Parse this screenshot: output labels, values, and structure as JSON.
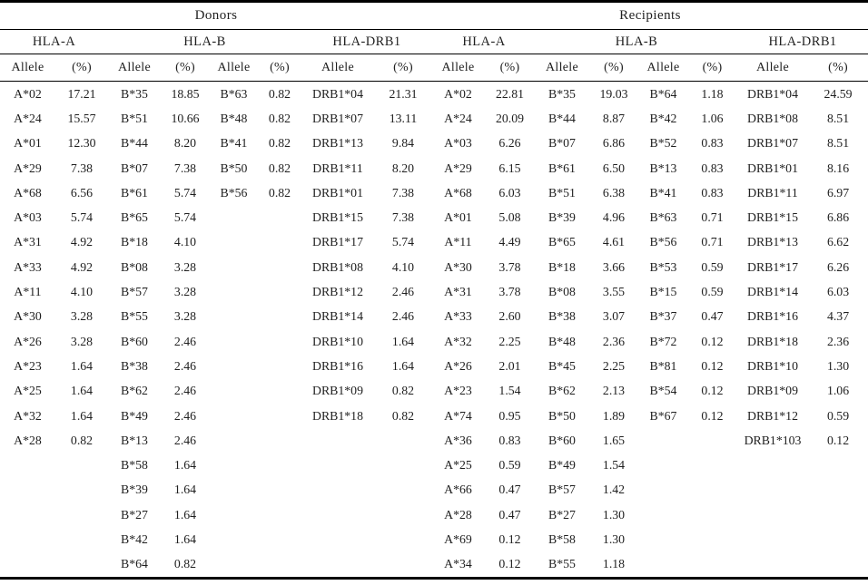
{
  "page": {
    "background_color": "#ffffff",
    "text_color": "#1f1f1f",
    "line_color": "#000000"
  },
  "table": {
    "group_headers": [
      {
        "label": "Donors"
      },
      {
        "label": "Recipients"
      }
    ],
    "subgroup_headers": [
      "HLA-A",
      "HLA-B",
      "HLA-DRB1",
      "HLA-A",
      "HLA-B",
      "HLA-DRB1"
    ],
    "column_header_labels": {
      "allele": "Allele",
      "percent": "(%)"
    },
    "row_count": 20,
    "body_columns": [
      {
        "group": "donors",
        "locus": "HLA-A",
        "entries": [
          [
            "A*02",
            "17.21"
          ],
          [
            "A*24",
            "15.57"
          ],
          [
            "A*01",
            "12.30"
          ],
          [
            "A*29",
            "7.38"
          ],
          [
            "A*68",
            "6.56"
          ],
          [
            "A*03",
            "5.74"
          ],
          [
            "A*31",
            "4.92"
          ],
          [
            "A*33",
            "4.92"
          ],
          [
            "A*11",
            "4.10"
          ],
          [
            "A*30",
            "3.28"
          ],
          [
            "A*26",
            "3.28"
          ],
          [
            "A*23",
            "1.64"
          ],
          [
            "A*25",
            "1.64"
          ],
          [
            "A*32",
            "1.64"
          ],
          [
            "A*28",
            "0.82"
          ]
        ]
      },
      {
        "group": "donors",
        "locus": "HLA-B",
        "entries": [
          [
            "B*35",
            "18.85"
          ],
          [
            "B*51",
            "10.66"
          ],
          [
            "B*44",
            "8.20"
          ],
          [
            "B*07",
            "7.38"
          ],
          [
            "B*61",
            "5.74"
          ],
          [
            "B*65",
            "5.74"
          ],
          [
            "B*18",
            "4.10"
          ],
          [
            "B*08",
            "3.28"
          ],
          [
            "B*57",
            "3.28"
          ],
          [
            "B*55",
            "3.28"
          ],
          [
            "B*60",
            "2.46"
          ],
          [
            "B*38",
            "2.46"
          ],
          [
            "B*62",
            "2.46"
          ],
          [
            "B*49",
            "2.46"
          ],
          [
            "B*13",
            "2.46"
          ],
          [
            "B*58",
            "1.64"
          ],
          [
            "B*39",
            "1.64"
          ],
          [
            "B*27",
            "1.64"
          ],
          [
            "B*42",
            "1.64"
          ],
          [
            "B*64",
            "0.82"
          ]
        ]
      },
      {
        "group": "donors",
        "locus": "HLA-B",
        "entries": [
          [
            "B*63",
            "0.82"
          ],
          [
            "B*48",
            "0.82"
          ],
          [
            "B*41",
            "0.82"
          ],
          [
            "B*50",
            "0.82"
          ],
          [
            "B*56",
            "0.82"
          ]
        ]
      },
      {
        "group": "donors",
        "locus": "HLA-DRB1",
        "entries": [
          [
            "DRB1*04",
            "21.31"
          ],
          [
            "DRB1*07",
            "13.11"
          ],
          [
            "DRB1*13",
            "9.84"
          ],
          [
            "DRB1*11",
            "8.20"
          ],
          [
            "DRB1*01",
            "7.38"
          ],
          [
            "DRB1*15",
            "7.38"
          ],
          [
            "DRB1*17",
            "5.74"
          ],
          [
            "DRB1*08",
            "4.10"
          ],
          [
            "DRB1*12",
            "2.46"
          ],
          [
            "DRB1*14",
            "2.46"
          ],
          [
            "DRB1*10",
            "1.64"
          ],
          [
            "DRB1*16",
            "1.64"
          ],
          [
            "DRB1*09",
            "0.82"
          ],
          [
            "DRB1*18",
            "0.82"
          ]
        ]
      },
      {
        "group": "recipients",
        "locus": "HLA-A",
        "entries": [
          [
            "A*02",
            "22.81"
          ],
          [
            "A*24",
            "20.09"
          ],
          [
            "A*03",
            "6.26"
          ],
          [
            "A*29",
            "6.15"
          ],
          [
            "A*68",
            "6.03"
          ],
          [
            "A*01",
            "5.08"
          ],
          [
            "A*11",
            "4.49"
          ],
          [
            "A*30",
            "3.78"
          ],
          [
            "A*31",
            "3.78"
          ],
          [
            "A*33",
            "2.60"
          ],
          [
            "A*32",
            "2.25"
          ],
          [
            "A*26",
            "2.01"
          ],
          [
            "A*23",
            "1.54"
          ],
          [
            "A*74",
            "0.95"
          ],
          [
            "A*36",
            "0.83"
          ],
          [
            "A*25",
            "0.59"
          ],
          [
            "A*66",
            "0.47"
          ],
          [
            "A*28",
            "0.47"
          ],
          [
            "A*69",
            "0.12"
          ],
          [
            "A*34",
            "0.12"
          ]
        ]
      },
      {
        "group": "recipients",
        "locus": "HLA-B",
        "entries": [
          [
            "B*35",
            "19.03"
          ],
          [
            "B*44",
            "8.87"
          ],
          [
            "B*07",
            "6.86"
          ],
          [
            "B*61",
            "6.50"
          ],
          [
            "B*51",
            "6.38"
          ],
          [
            "B*39",
            "4.96"
          ],
          [
            "B*65",
            "4.61"
          ],
          [
            "B*18",
            "3.66"
          ],
          [
            "B*08",
            "3.55"
          ],
          [
            "B*38",
            "3.07"
          ],
          [
            "B*48",
            "2.36"
          ],
          [
            "B*45",
            "2.25"
          ],
          [
            "B*62",
            "2.13"
          ],
          [
            "B*50",
            "1.89"
          ],
          [
            "B*60",
            "1.65"
          ],
          [
            "B*49",
            "1.54"
          ],
          [
            "B*57",
            "1.42"
          ],
          [
            "B*27",
            "1.30"
          ],
          [
            "B*58",
            "1.30"
          ],
          [
            "B*55",
            "1.18"
          ]
        ]
      },
      {
        "group": "recipients",
        "locus": "HLA-B",
        "entries": [
          [
            "B*64",
            "1.18"
          ],
          [
            "B*42",
            "1.06"
          ],
          [
            "B*52",
            "0.83"
          ],
          [
            "B*13",
            "0.83"
          ],
          [
            "B*41",
            "0.83"
          ],
          [
            "B*63",
            "0.71"
          ],
          [
            "B*56",
            "0.71"
          ],
          [
            "B*53",
            "0.59"
          ],
          [
            "B*15",
            "0.59"
          ],
          [
            "B*37",
            "0.47"
          ],
          [
            "B*72",
            "0.12"
          ],
          [
            "B*81",
            "0.12"
          ],
          [
            "B*54",
            "0.12"
          ],
          [
            "B*67",
            "0.12"
          ]
        ]
      },
      {
        "group": "recipients",
        "locus": "HLA-DRB1",
        "entries": [
          [
            "DRB1*04",
            "24.59"
          ],
          [
            "DRB1*08",
            "8.51"
          ],
          [
            "DRB1*07",
            "8.51"
          ],
          [
            "DRB1*01",
            "8.16"
          ],
          [
            "DRB1*11",
            "6.97"
          ],
          [
            "DRB1*15",
            "6.86"
          ],
          [
            "DRB1*13",
            "6.62"
          ],
          [
            "DRB1*17",
            "6.26"
          ],
          [
            "DRB1*14",
            "6.03"
          ],
          [
            "DRB1*16",
            "4.37"
          ],
          [
            "DRB1*18",
            "2.36"
          ],
          [
            "DRB1*10",
            "1.30"
          ],
          [
            "DRB1*09",
            "1.06"
          ],
          [
            "DRB1*12",
            "0.59"
          ],
          [
            "DRB1*103",
            "0.12"
          ]
        ]
      }
    ]
  }
}
